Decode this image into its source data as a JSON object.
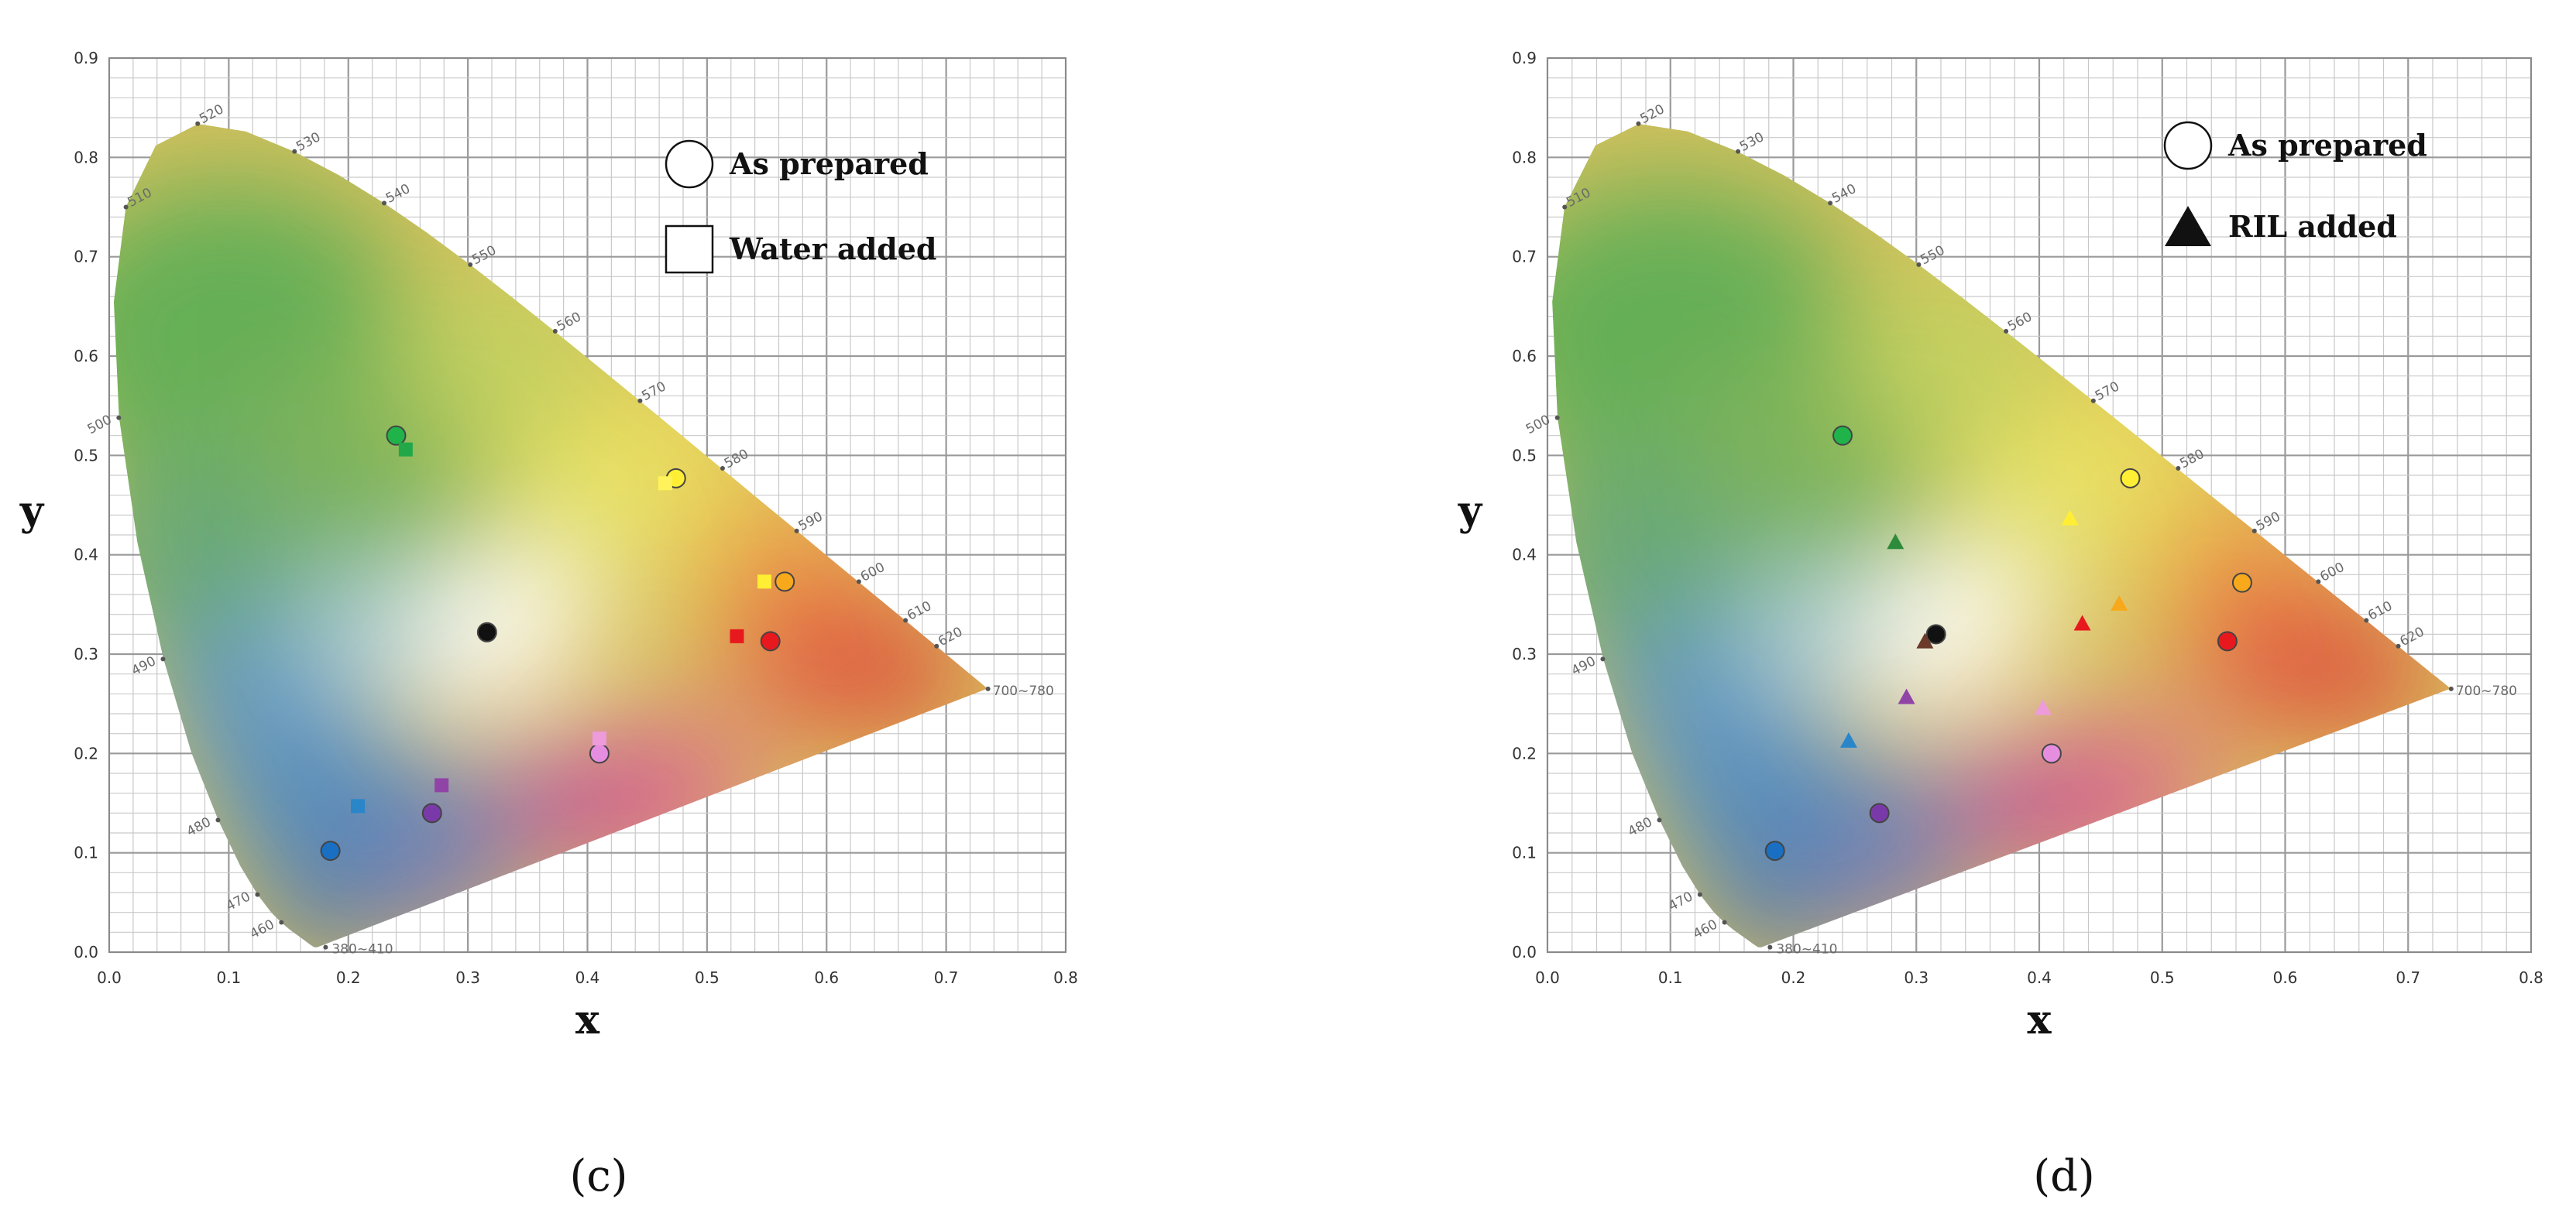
{
  "colors": {
    "black": "#111111",
    "green": "#1fb34a",
    "yellow": "#ffee33",
    "orange": "#f7a81b",
    "red": "#e8191e",
    "pink": "#e58ee0",
    "purple": "#7a39a8",
    "blue": "#1a6fc2",
    "yellow_light": "#fff25a",
    "pink_light": "#ee9bdc",
    "purple_light": "#9044a6",
    "blue_light": "#2a86c8",
    "green_light": "#22a849",
    "brown_tri": "#6b3a2a",
    "olive_tri": "#2e8b3c"
  },
  "chart_data": [
    {
      "type": "scatter",
      "panel_label": "(c)",
      "xlabel": "x",
      "ylabel": "y",
      "xlim": [
        0.0,
        0.8
      ],
      "ylim": [
        0.0,
        0.9
      ],
      "xticks": [
        "0.0",
        "0.1",
        "0.2",
        "0.3",
        "0.4",
        "0.5",
        "0.6",
        "0.7",
        "0.8"
      ],
      "yticks": [
        "0.0",
        "0.1",
        "0.2",
        "0.3",
        "0.4",
        "0.5",
        "0.6",
        "0.7",
        "0.8",
        "0.9"
      ],
      "grid": true,
      "legend_position": "top-right",
      "background": "CIE 1931 chromaticity diagram",
      "wavelength_labels": [
        "380~410",
        "460",
        "470",
        "480",
        "490",
        "500",
        "510",
        "520",
        "530",
        "540",
        "550",
        "560",
        "570",
        "580",
        "590",
        "600",
        "610",
        "620",
        "700~780"
      ],
      "series": [
        {
          "name": "As prepared",
          "marker": "circle",
          "points": [
            {
              "x": 0.316,
              "y": 0.322,
              "color": "black"
            },
            {
              "x": 0.24,
              "y": 0.52,
              "color": "green"
            },
            {
              "x": 0.474,
              "y": 0.477,
              "color": "yellow"
            },
            {
              "x": 0.565,
              "y": 0.373,
              "color": "orange"
            },
            {
              "x": 0.553,
              "y": 0.313,
              "color": "red"
            },
            {
              "x": 0.41,
              "y": 0.2,
              "color": "pink"
            },
            {
              "x": 0.27,
              "y": 0.14,
              "color": "purple"
            },
            {
              "x": 0.185,
              "y": 0.102,
              "color": "blue"
            }
          ]
        },
        {
          "name": "Water added",
          "marker": "square",
          "points": [
            {
              "x": 0.248,
              "y": 0.506,
              "color": "green_light"
            },
            {
              "x": 0.465,
              "y": 0.472,
              "color": "yellow_light"
            },
            {
              "x": 0.548,
              "y": 0.373,
              "color": "yellow"
            },
            {
              "x": 0.525,
              "y": 0.318,
              "color": "red"
            },
            {
              "x": 0.41,
              "y": 0.215,
              "color": "pink_light"
            },
            {
              "x": 0.278,
              "y": 0.168,
              "color": "purple_light"
            },
            {
              "x": 0.208,
              "y": 0.147,
              "color": "blue_light"
            }
          ]
        }
      ]
    },
    {
      "type": "scatter",
      "panel_label": "(d)",
      "xlabel": "x",
      "ylabel": "y",
      "xlim": [
        0.0,
        0.8
      ],
      "ylim": [
        0.0,
        0.9
      ],
      "xticks": [
        "0.0",
        "0.1",
        "0.2",
        "0.3",
        "0.4",
        "0.5",
        "0.6",
        "0.7",
        "0.8"
      ],
      "yticks": [
        "0.0",
        "0.1",
        "0.2",
        "0.3",
        "0.4",
        "0.5",
        "0.6",
        "0.7",
        "0.8",
        "0.9"
      ],
      "grid": true,
      "legend_position": "top-right",
      "background": "CIE 1931 chromaticity diagram",
      "wavelength_labels": [
        "380~410",
        "460",
        "470",
        "480",
        "490",
        "500",
        "510",
        "520",
        "530",
        "540",
        "550",
        "560",
        "570",
        "580",
        "590",
        "600",
        "610",
        "620",
        "700~780"
      ],
      "series": [
        {
          "name": "As prepared",
          "marker": "circle",
          "points": [
            {
              "x": 0.316,
              "y": 0.32,
              "color": "black"
            },
            {
              "x": 0.24,
              "y": 0.52,
              "color": "green"
            },
            {
              "x": 0.474,
              "y": 0.477,
              "color": "yellow"
            },
            {
              "x": 0.565,
              "y": 0.372,
              "color": "orange"
            },
            {
              "x": 0.553,
              "y": 0.313,
              "color": "red"
            },
            {
              "x": 0.41,
              "y": 0.2,
              "color": "pink"
            },
            {
              "x": 0.27,
              "y": 0.14,
              "color": "purple"
            },
            {
              "x": 0.185,
              "y": 0.102,
              "color": "blue"
            }
          ]
        },
        {
          "name": "RIL added",
          "marker": "triangle",
          "points": [
            {
              "x": 0.307,
              "y": 0.312,
              "color": "brown_tri"
            },
            {
              "x": 0.283,
              "y": 0.412,
              "color": "olive_tri"
            },
            {
              "x": 0.425,
              "y": 0.436,
              "color": "yellow"
            },
            {
              "x": 0.465,
              "y": 0.35,
              "color": "orange"
            },
            {
              "x": 0.435,
              "y": 0.33,
              "color": "red"
            },
            {
              "x": 0.403,
              "y": 0.245,
              "color": "pink_light"
            },
            {
              "x": 0.292,
              "y": 0.256,
              "color": "purple_light"
            },
            {
              "x": 0.245,
              "y": 0.212,
              "color": "blue_light"
            }
          ]
        }
      ]
    }
  ]
}
